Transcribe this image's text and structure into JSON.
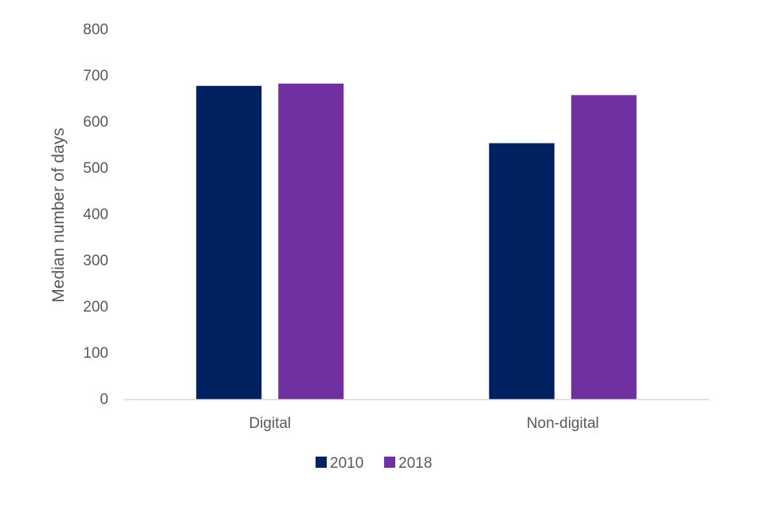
{
  "chart_data": {
    "type": "bar",
    "title": "",
    "xlabel": "",
    "ylabel": "Median number of days",
    "ylim": [
      0,
      800
    ],
    "yticks": [
      "0",
      "100",
      "200",
      "300",
      "400",
      "500",
      "600",
      "700",
      "800"
    ],
    "grid": false,
    "legend_position": "bottom",
    "categories": [
      "Digital",
      "Non-digital"
    ],
    "series": [
      {
        "name": "2010",
        "color": "#002060",
        "values": [
          678,
          554
        ]
      },
      {
        "name": "2018",
        "color": "#7030A0",
        "values": [
          683,
          658
        ]
      }
    ]
  }
}
